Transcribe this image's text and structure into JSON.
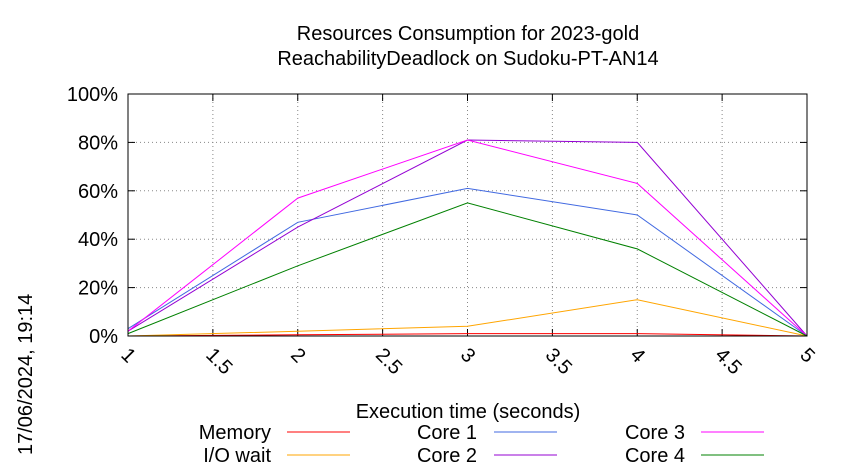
{
  "chart_data": {
    "type": "line",
    "title": "Resources Consumption for 2023-gold",
    "subtitle": "ReachabilityDeadlock on Sudoku-PT-AN14",
    "xlabel": "Execution time (seconds)",
    "ylabel": "",
    "xlim": [
      1,
      5
    ],
    "ylim": [
      0,
      100
    ],
    "x_ticks": [
      "1",
      "1.5",
      "2",
      "2.5",
      "3",
      "3.5",
      "4",
      "4.5",
      "5"
    ],
    "y_ticks": [
      "0%",
      "20%",
      "40%",
      "60%",
      "80%",
      "100%"
    ],
    "grid": true,
    "legend_position": "bottom",
    "x": [
      1,
      2,
      3,
      4,
      5
    ],
    "series": [
      {
        "name": "Memory",
        "color": "#ff0000",
        "values": [
          0,
          0.5,
          1,
          1,
          0
        ]
      },
      {
        "name": "I/O wait",
        "color": "#ffa500",
        "values": [
          0,
          2,
          4,
          15,
          0
        ]
      },
      {
        "name": "Core 1",
        "color": "#4169e1",
        "values": [
          3,
          47,
          61,
          50,
          0
        ]
      },
      {
        "name": "Core 2",
        "color": "#9400d3",
        "values": [
          2,
          45,
          81,
          80,
          0
        ]
      },
      {
        "name": "Core 3",
        "color": "#ff00ff",
        "values": [
          2,
          57,
          81,
          63,
          0
        ]
      },
      {
        "name": "Core 4",
        "color": "#008000",
        "values": [
          1,
          29,
          55,
          36,
          0
        ]
      }
    ]
  },
  "timestamp": "17/06/2024, 19:14"
}
